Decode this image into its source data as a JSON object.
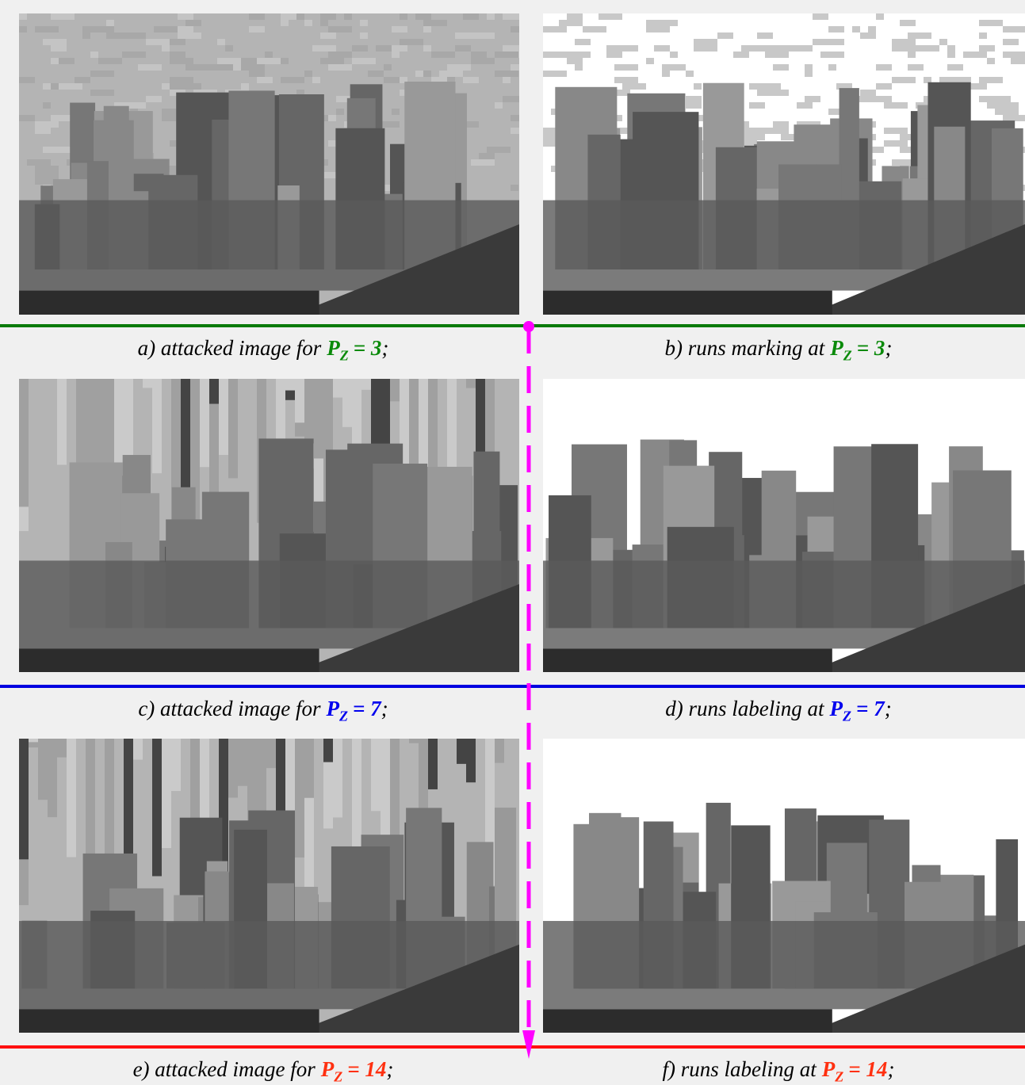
{
  "figure": {
    "panels": [
      {
        "caption": {
          "prefix": "a) attacked image for",
          "variable": "P",
          "subscript": "Z",
          "value": "= 3",
          "end": ";"
        }
      },
      {
        "caption": {
          "prefix": "b) runs marking at",
          "variable": "P",
          "subscript": "Z",
          "value": "= 3",
          "end": ";"
        }
      },
      {
        "caption": {
          "prefix": "c) attacked image for",
          "variable": "P",
          "subscript": "Z",
          "value": "= 7",
          "end": ";"
        }
      },
      {
        "caption": {
          "prefix": "d) runs labeling at",
          "variable": "P",
          "subscript": "Z",
          "value": "= 7",
          "end": ";"
        }
      },
      {
        "caption": {
          "prefix": "e) attacked image for",
          "variable": "P",
          "subscript": "Z",
          "value": "= 14",
          "end": ";"
        }
      },
      {
        "caption": {
          "prefix": "f) runs labeling at",
          "variable": "P",
          "subscript": "Z",
          "value": "= 14",
          "end": ";"
        }
      }
    ]
  }
}
